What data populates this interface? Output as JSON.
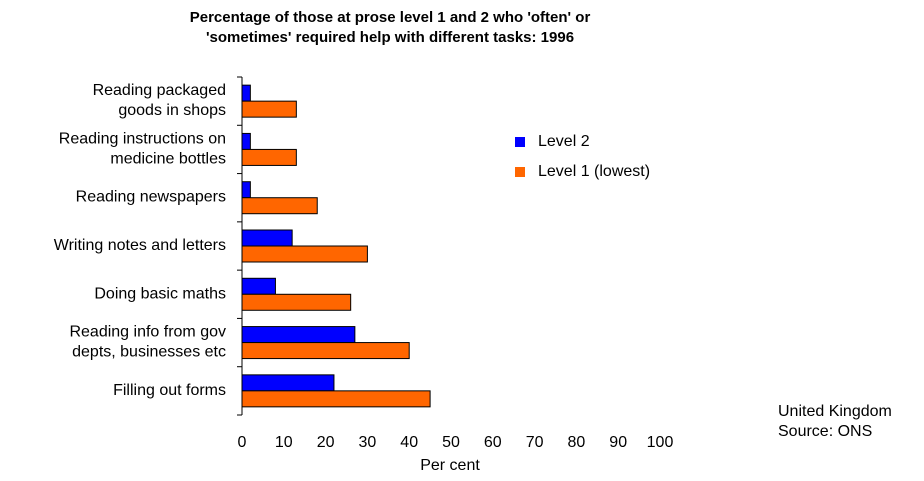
{
  "chart_data": {
    "type": "bar",
    "orientation": "horizontal",
    "title": [
      "Percentage of those at prose level 1 and 2 who 'often' or",
      "'sometimes' required help with different tasks: 1996"
    ],
    "categories": [
      "Reading packaged\ngoods in shops",
      "Reading instructions on\nmedicine bottles",
      "Reading newspapers",
      "Writing notes and letters",
      "Doing basic maths",
      "Reading info from gov\ndepts, businesses etc",
      "Filling out forms"
    ],
    "series": [
      {
        "name": "Level 2",
        "color": "#0000ff",
        "values": [
          2,
          2,
          2,
          12,
          8,
          27,
          22
        ]
      },
      {
        "name": "Level 1 (lowest)",
        "color": "#ff6600",
        "values": [
          13,
          13,
          18,
          30,
          26,
          40,
          45
        ]
      }
    ],
    "xlabel": "Per cent",
    "xlim": [
      0,
      100
    ],
    "xticks": [
      0,
      10,
      20,
      30,
      40,
      50,
      60,
      70,
      80,
      90,
      100
    ],
    "note": [
      "United Kingdom",
      "Source: ONS"
    ],
    "legend": "right",
    "grid": false
  }
}
